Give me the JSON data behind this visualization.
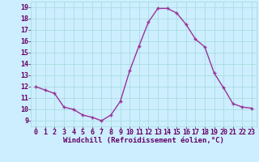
{
  "x": [
    0,
    1,
    2,
    3,
    4,
    5,
    6,
    7,
    8,
    9,
    10,
    11,
    12,
    13,
    14,
    15,
    16,
    17,
    18,
    19,
    20,
    21,
    22,
    23
  ],
  "y": [
    12.0,
    11.7,
    11.4,
    10.2,
    10.0,
    9.5,
    9.3,
    9.0,
    9.5,
    10.7,
    13.4,
    15.6,
    17.7,
    18.9,
    18.9,
    18.5,
    17.5,
    16.2,
    15.5,
    13.2,
    11.9,
    10.5,
    10.2,
    10.1
  ],
  "line_color": "#993399",
  "marker_color": "#993399",
  "bg_color": "#cceeff",
  "grid_color": "#aadddd",
  "ylabel_ticks": [
    9,
    10,
    11,
    12,
    13,
    14,
    15,
    16,
    17,
    18,
    19
  ],
  "xlim": [
    -0.5,
    23.5
  ],
  "ylim": [
    8.5,
    19.5
  ],
  "xtick_labels": [
    "0",
    "1",
    "2",
    "3",
    "4",
    "5",
    "6",
    "7",
    "8",
    "9",
    "10",
    "11",
    "12",
    "13",
    "14",
    "15",
    "16",
    "17",
    "18",
    "19",
    "20",
    "21",
    "22",
    "23"
  ],
  "xlabel": "Windchill (Refroidissement éolien,°C)",
  "xlabel_color": "#660066",
  "tick_color": "#660066",
  "font_size_xlabel": 6.5,
  "font_size_ticks": 6.0
}
